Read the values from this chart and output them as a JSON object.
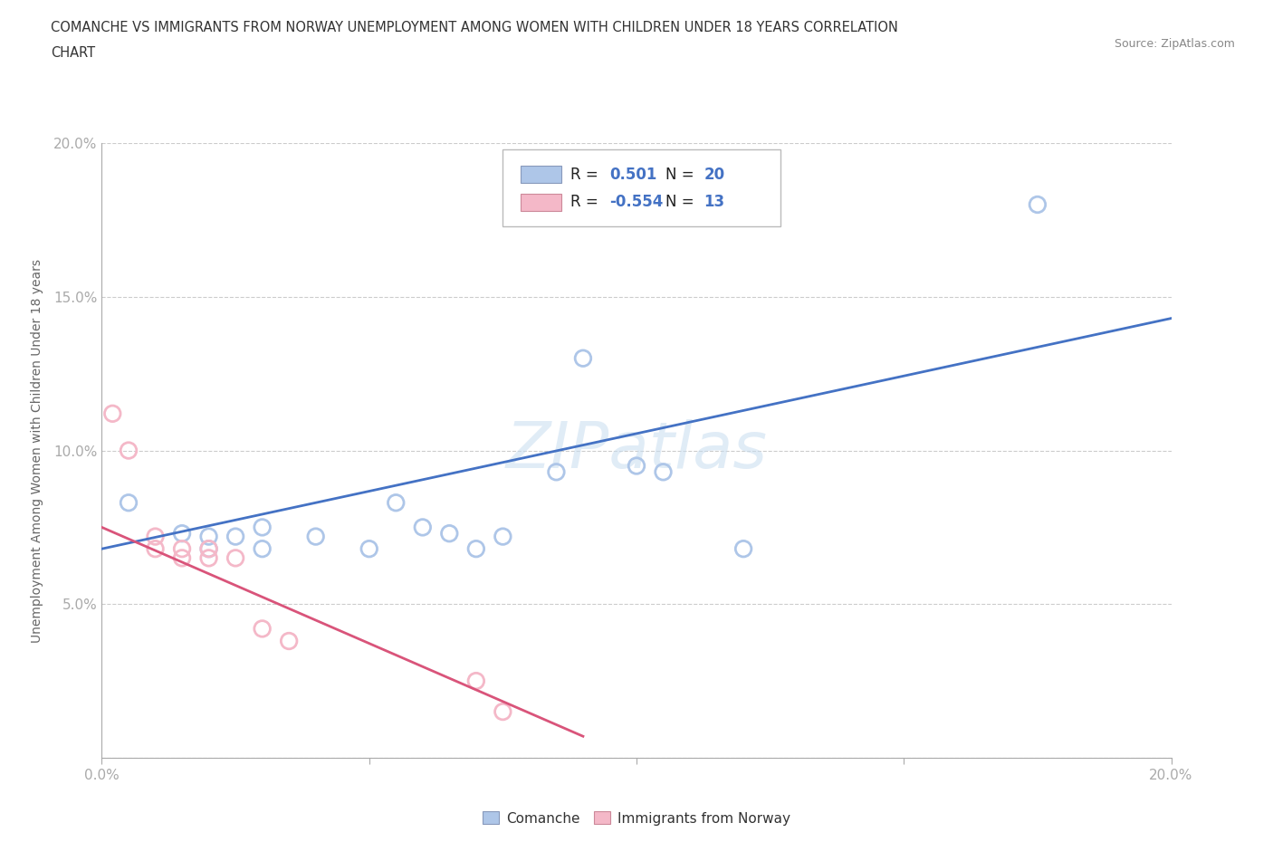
{
  "title_line1": "COMANCHE VS IMMIGRANTS FROM NORWAY UNEMPLOYMENT AMONG WOMEN WITH CHILDREN UNDER 18 YEARS CORRELATION",
  "title_line2": "CHART",
  "source_text": "Source: ZipAtlas.com",
  "ylabel": "Unemployment Among Women with Children Under 18 years",
  "xlim": [
    0.0,
    0.2
  ],
  "ylim": [
    0.0,
    0.2
  ],
  "x_ticks": [
    0.0,
    0.05,
    0.1,
    0.15,
    0.2
  ],
  "y_ticks": [
    0.0,
    0.05,
    0.1,
    0.15,
    0.2
  ],
  "comanche_color": "#aec6e8",
  "norway_color": "#f4b8c8",
  "comanche_line_color": "#4472c4",
  "norway_line_color": "#d9547a",
  "comanche_R": 0.501,
  "comanche_N": 20,
  "norway_R": -0.554,
  "norway_N": 13,
  "watermark": "ZIPatlas",
  "comanche_points": [
    [
      0.005,
      0.083
    ],
    [
      0.015,
      0.073
    ],
    [
      0.02,
      0.072
    ],
    [
      0.02,
      0.068
    ],
    [
      0.025,
      0.072
    ],
    [
      0.03,
      0.075
    ],
    [
      0.03,
      0.068
    ],
    [
      0.04,
      0.072
    ],
    [
      0.05,
      0.068
    ],
    [
      0.055,
      0.083
    ],
    [
      0.06,
      0.075
    ],
    [
      0.065,
      0.073
    ],
    [
      0.07,
      0.068
    ],
    [
      0.075,
      0.072
    ],
    [
      0.085,
      0.093
    ],
    [
      0.09,
      0.13
    ],
    [
      0.1,
      0.095
    ],
    [
      0.105,
      0.093
    ],
    [
      0.12,
      0.068
    ],
    [
      0.175,
      0.18
    ]
  ],
  "norway_points": [
    [
      0.002,
      0.112
    ],
    [
      0.005,
      0.1
    ],
    [
      0.01,
      0.072
    ],
    [
      0.01,
      0.068
    ],
    [
      0.015,
      0.068
    ],
    [
      0.015,
      0.065
    ],
    [
      0.02,
      0.068
    ],
    [
      0.02,
      0.065
    ],
    [
      0.025,
      0.065
    ],
    [
      0.03,
      0.042
    ],
    [
      0.035,
      0.038
    ],
    [
      0.07,
      0.025
    ],
    [
      0.075,
      0.015
    ]
  ],
  "comanche_trendline_x": [
    0.0,
    0.2
  ],
  "comanche_trendline_y": [
    0.068,
    0.143
  ],
  "norway_trendline_x": [
    0.0,
    0.09
  ],
  "norway_trendline_y": [
    0.075,
    0.007
  ]
}
